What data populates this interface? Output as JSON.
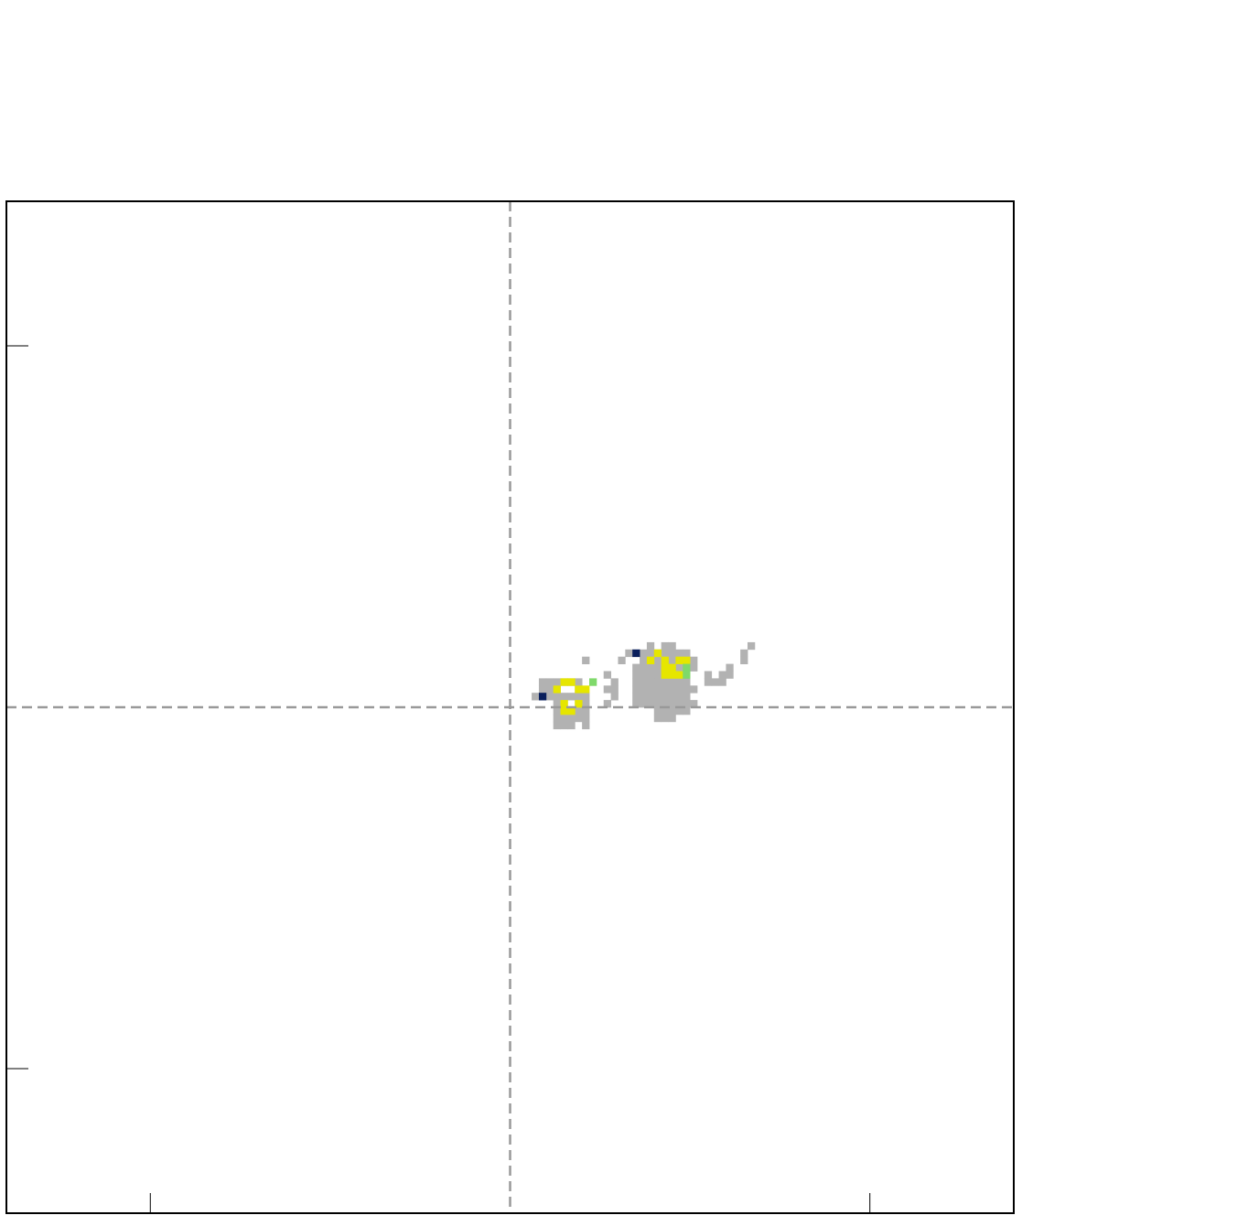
{
  "chart_data": {
    "type": "heatmap",
    "title": "",
    "xlabel": "",
    "ylabel": "",
    "xlim": [
      -7,
      7
    ],
    "ylim": [
      -7,
      7
    ],
    "x_ticks": [
      -5,
      5
    ],
    "y_ticks": [
      -5,
      5
    ],
    "reference_lines": {
      "x": 0,
      "y": 0,
      "style": "dashed",
      "color": "#999999"
    },
    "cell_size": 0.1,
    "colors": {
      "low": "#b2b2b2",
      "high": "#e6e600",
      "mid": "#7fd96a",
      "dark": "#0a1f5c"
    },
    "cells": [
      [
        2.05,
        -0.15,
        "low"
      ],
      [
        2.05,
        -0.05,
        "low"
      ],
      [
        2.05,
        0.05,
        "low"
      ],
      [
        2.05,
        0.15,
        "low"
      ],
      [
        2.05,
        0.25,
        "low"
      ],
      [
        2.05,
        0.35,
        "low"
      ],
      [
        2.05,
        0.45,
        "low"
      ],
      [
        2.05,
        0.55,
        "low"
      ],
      [
        2.05,
        0.65,
        "low"
      ],
      [
        2.05,
        0.75,
        "low"
      ],
      [
        2.15,
        -0.15,
        "low"
      ],
      [
        2.15,
        -0.05,
        "low"
      ],
      [
        2.15,
        0.05,
        "low"
      ],
      [
        2.15,
        0.15,
        "low"
      ],
      [
        2.15,
        0.25,
        "low"
      ],
      [
        2.15,
        0.35,
        "low"
      ],
      [
        2.15,
        0.45,
        "low"
      ],
      [
        2.15,
        0.55,
        "low"
      ],
      [
        2.15,
        0.65,
        "low"
      ],
      [
        2.15,
        0.75,
        "low"
      ],
      [
        2.15,
        0.85,
        "low"
      ],
      [
        2.25,
        -0.15,
        "low"
      ],
      [
        2.25,
        -0.05,
        "low"
      ],
      [
        2.25,
        0.05,
        "low"
      ],
      [
        2.25,
        0.15,
        "low"
      ],
      [
        2.25,
        0.25,
        "low"
      ],
      [
        2.25,
        0.35,
        "low"
      ],
      [
        2.25,
        0.45,
        "low"
      ],
      [
        2.25,
        0.55,
        "low"
      ],
      [
        2.25,
        0.65,
        "low"
      ],
      [
        2.25,
        0.75,
        "low"
      ],
      [
        2.25,
        0.85,
        "low"
      ],
      [
        2.35,
        -0.05,
        "low"
      ],
      [
        2.35,
        0.05,
        "low"
      ],
      [
        2.35,
        0.15,
        "low"
      ],
      [
        2.35,
        0.25,
        "low"
      ],
      [
        2.35,
        0.35,
        "low"
      ],
      [
        2.35,
        0.45,
        "low"
      ],
      [
        2.35,
        0.55,
        "low"
      ],
      [
        2.35,
        0.65,
        "low"
      ],
      [
        2.35,
        0.75,
        "low"
      ],
      [
        2.45,
        -0.05,
        "low"
      ],
      [
        2.45,
        0.05,
        "low"
      ],
      [
        2.45,
        0.15,
        "low"
      ],
      [
        2.45,
        0.25,
        "low"
      ],
      [
        2.45,
        0.35,
        "low"
      ],
      [
        2.45,
        0.45,
        "low"
      ],
      [
        2.45,
        0.55,
        "low"
      ],
      [
        2.45,
        0.65,
        "low"
      ],
      [
        2.45,
        0.75,
        "low"
      ],
      [
        2.55,
        0.05,
        "low"
      ],
      [
        2.55,
        0.25,
        "low"
      ],
      [
        2.55,
        0.55,
        "low"
      ],
      [
        2.55,
        0.65,
        "low"
      ],
      [
        1.45,
        0.15,
        "low"
      ],
      [
        1.45,
        0.25,
        "low"
      ],
      [
        0.65,
        -0.25,
        "low"
      ],
      [
        0.75,
        -0.25,
        "low"
      ],
      [
        0.85,
        -0.25,
        "low"
      ],
      [
        1.05,
        -0.25,
        "low"
      ],
      [
        0.65,
        -0.15,
        "low"
      ],
      [
        0.75,
        -0.15,
        "low"
      ],
      [
        0.85,
        -0.15,
        "low"
      ],
      [
        0.95,
        -0.15,
        "low"
      ],
      [
        1.05,
        -0.15,
        "low"
      ],
      [
        0.65,
        -0.05,
        "low"
      ],
      [
        0.75,
        -0.05,
        "low"
      ],
      [
        0.85,
        -0.05,
        "low"
      ],
      [
        0.95,
        -0.05,
        "low"
      ],
      [
        1.05,
        -0.05,
        "low"
      ],
      [
        0.65,
        0.05,
        "low"
      ],
      [
        0.95,
        0.05,
        "low"
      ],
      [
        1.05,
        0.05,
        "low"
      ],
      [
        0.55,
        0.15,
        "low"
      ],
      [
        0.65,
        0.15,
        "low"
      ],
      [
        0.75,
        0.15,
        "low"
      ],
      [
        0.85,
        0.15,
        "low"
      ],
      [
        0.95,
        0.15,
        "low"
      ],
      [
        1.05,
        0.15,
        "low"
      ],
      [
        0.45,
        0.25,
        "low"
      ],
      [
        0.55,
        0.25,
        "low"
      ],
      [
        0.65,
        0.25,
        "low"
      ],
      [
        0.95,
        0.25,
        "low"
      ],
      [
        0.45,
        0.35,
        "low"
      ],
      [
        0.65,
        0.35,
        "low"
      ],
      [
        0.75,
        0.35,
        "low"
      ],
      [
        0.85,
        0.35,
        "low"
      ],
      [
        0.95,
        0.35,
        "low"
      ],
      [
        0.35,
        0.15,
        "low"
      ],
      [
        0.55,
        0.35,
        "low"
      ],
      [
        1.35,
        0.05,
        "low"
      ],
      [
        1.35,
        0.25,
        "low"
      ],
      [
        1.35,
        0.45,
        "low"
      ],
      [
        1.45,
        0.35,
        "low"
      ],
      [
        1.05,
        0.65,
        "low"
      ],
      [
        1.55,
        0.65,
        "low"
      ],
      [
        1.65,
        0.75,
        "low"
      ],
      [
        1.75,
        0.05,
        "low"
      ],
      [
        1.75,
        0.15,
        "low"
      ],
      [
        1.75,
        0.25,
        "low"
      ],
      [
        1.75,
        0.35,
        "low"
      ],
      [
        1.75,
        0.45,
        "low"
      ],
      [
        1.75,
        0.55,
        "low"
      ],
      [
        1.85,
        0.05,
        "low"
      ],
      [
        1.85,
        0.15,
        "low"
      ],
      [
        1.85,
        0.25,
        "low"
      ],
      [
        1.85,
        0.35,
        "low"
      ],
      [
        1.85,
        0.45,
        "low"
      ],
      [
        1.85,
        0.55,
        "low"
      ],
      [
        1.85,
        0.65,
        "low"
      ],
      [
        1.85,
        0.75,
        "low"
      ],
      [
        1.95,
        0.05,
        "low"
      ],
      [
        1.95,
        0.15,
        "low"
      ],
      [
        1.95,
        0.25,
        "low"
      ],
      [
        1.95,
        0.35,
        "low"
      ],
      [
        1.95,
        0.45,
        "low"
      ],
      [
        1.95,
        0.55,
        "low"
      ],
      [
        1.95,
        0.65,
        "low"
      ],
      [
        1.95,
        0.75,
        "low"
      ],
      [
        1.95,
        0.85,
        "low"
      ],
      [
        2.75,
        0.35,
        "low"
      ],
      [
        2.75,
        0.45,
        "low"
      ],
      [
        2.85,
        0.35,
        "low"
      ],
      [
        2.95,
        0.35,
        "low"
      ],
      [
        2.95,
        0.45,
        "low"
      ],
      [
        3.05,
        0.45,
        "low"
      ],
      [
        3.05,
        0.55,
        "low"
      ],
      [
        3.25,
        0.65,
        "low"
      ],
      [
        3.25,
        0.75,
        "low"
      ],
      [
        3.35,
        0.85,
        "low"
      ],
      [
        2.15,
        0.45,
        "high"
      ],
      [
        2.15,
        0.55,
        "high"
      ],
      [
        2.15,
        0.65,
        "high"
      ],
      [
        2.05,
        0.75,
        "high"
      ],
      [
        2.25,
        0.45,
        "high"
      ],
      [
        2.25,
        0.55,
        "high"
      ],
      [
        2.35,
        0.45,
        "high"
      ],
      [
        2.35,
        0.65,
        "high"
      ],
      [
        2.45,
        0.65,
        "high"
      ],
      [
        1.95,
        0.65,
        "high"
      ],
      [
        0.75,
        0.35,
        "high"
      ],
      [
        0.85,
        0.35,
        "high"
      ],
      [
        0.65,
        0.25,
        "high"
      ],
      [
        0.95,
        0.25,
        "high"
      ],
      [
        1.05,
        0.25,
        "high"
      ],
      [
        0.75,
        0.05,
        "high"
      ],
      [
        0.75,
        -0.05,
        "high"
      ],
      [
        0.85,
        -0.05,
        "high"
      ],
      [
        0.95,
        0.05,
        "high"
      ],
      [
        2.45,
        0.55,
        "mid"
      ],
      [
        2.45,
        0.45,
        "mid"
      ],
      [
        1.15,
        0.35,
        "mid"
      ],
      [
        0.45,
        0.15,
        "dark"
      ],
      [
        1.75,
        0.75,
        "dark"
      ]
    ]
  }
}
